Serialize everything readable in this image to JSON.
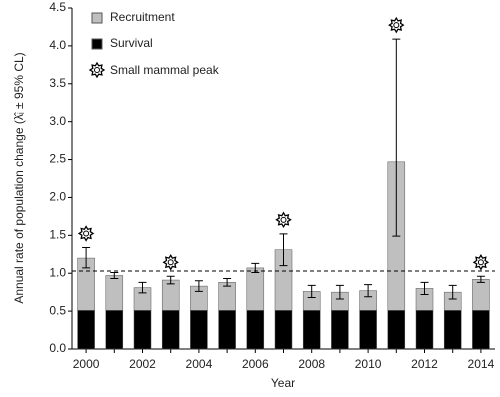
{
  "chart_data": {
    "type": "stacked_bar",
    "y_label": "Annual rate of population change (λ̂ᵢ ± 95% CL)",
    "x_label": "Year",
    "categories": [
      2000,
      null,
      2002,
      null,
      2004,
      null,
      2006,
      null,
      2008,
      null,
      2010,
      null,
      2012,
      null,
      2014
    ],
    "series": [
      {
        "name": "Survival",
        "color": "#000000",
        "values": [
          0.51,
          0.51,
          0.51,
          0.51,
          0.51,
          0.51,
          0.51,
          0.51,
          0.51,
          0.51,
          0.51,
          0.51,
          0.51,
          0.51,
          0.51
        ]
      },
      {
        "name": "Recruitment",
        "color": "#bfbfbf",
        "values": [
          0.69,
          0.46,
          0.3,
          0.4,
          0.32,
          0.37,
          0.56,
          0.8,
          0.25,
          0.24,
          0.26,
          1.96,
          0.29,
          0.24,
          0.41
        ]
      }
    ],
    "ci_upper": [
      1.34,
      1.01,
      0.88,
      0.96,
      0.9,
      0.93,
      1.13,
      1.52,
      0.84,
      0.84,
      0.85,
      4.09,
      0.88,
      0.84,
      0.96
    ],
    "ci_lower": [
      1.07,
      0.93,
      0.74,
      0.86,
      0.76,
      0.83,
      1.01,
      1.1,
      0.68,
      0.66,
      0.69,
      1.49,
      0.72,
      0.66,
      0.88
    ],
    "peak_name": "Small mammal peak",
    "peaks": [
      true,
      false,
      false,
      true,
      false,
      false,
      false,
      true,
      false,
      false,
      false,
      true,
      false,
      false,
      true
    ],
    "reference_line": 1.03,
    "ylim": [
      0,
      4.5
    ],
    "yticks": [
      {
        "value": 0,
        "label": "0.0"
      },
      {
        "value": 0.5,
        "label": "0.5"
      },
      {
        "value": 1,
        "label": "1.0"
      },
      {
        "value": 1.5,
        "label": "1.5"
      },
      {
        "value": 2,
        "label": "2.0"
      },
      {
        "value": 2.5,
        "label": "2.5"
      },
      {
        "value": 3,
        "label": "3.0"
      },
      {
        "value": 3.5,
        "label": "3.5"
      },
      {
        "value": 4,
        "label": "4.0"
      },
      {
        "value": 4.5,
        "label": "4.5"
      }
    ]
  }
}
